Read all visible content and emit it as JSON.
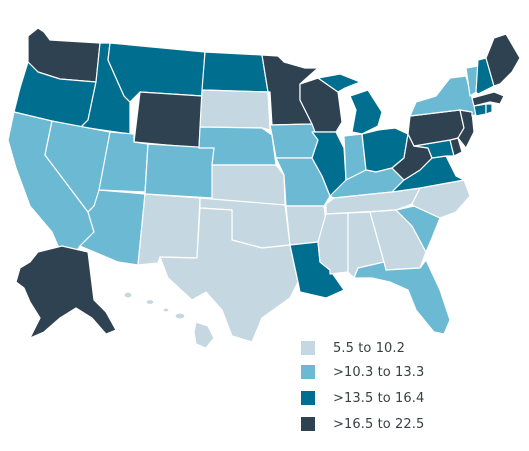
{
  "colors": {
    "bin1": "#c5d7e1",
    "bin2": "#6bb9d3",
    "bin3": "#006e8f",
    "bin4": "#2f4252"
  },
  "legend": {
    "items": [
      {
        "label": "5.5 to 10.2",
        "bin": "bin1"
      },
      {
        "label": ">10.3 to 13.3",
        "bin": "bin2"
      },
      {
        "label": ">13.5 to 16.4",
        "bin": "bin3"
      },
      {
        "label": ">16.5 to 22.5",
        "bin": "bin4"
      }
    ]
  },
  "states": {
    "WA": "bin4",
    "OR": "bin3",
    "ID": "bin3",
    "MT": "bin3",
    "WY": "bin4",
    "ND": "bin3",
    "SD": "bin1",
    "MN": "bin4",
    "WI": "bin4",
    "MI": "bin3",
    "CA": "bin2",
    "NV": "bin2",
    "UT": "bin2",
    "AZ": "bin2",
    "CO": "bin2",
    "NM": "bin1",
    "NE": "bin2",
    "KS": "bin1",
    "OK": "bin1",
    "TX": "bin1",
    "IA": "bin2",
    "MO": "bin2",
    "AR": "bin1",
    "LA": "bin3",
    "IL": "bin3",
    "IN": "bin2",
    "OH": "bin3",
    "KY": "bin2",
    "TN": "bin1",
    "MS": "bin1",
    "AL": "bin1",
    "GA": "bin1",
    "FL": "bin2",
    "SC": "bin2",
    "NC": "bin1",
    "VA": "bin3",
    "WV": "bin4",
    "PA": "bin4",
    "NY": "bin2",
    "MD": "bin3",
    "DE": "bin4",
    "NJ": "bin4",
    "CT": "bin3",
    "RI": "bin3",
    "MA": "bin4",
    "VT": "bin2",
    "NH": "bin3",
    "ME": "bin4",
    "AK": "bin4",
    "HI": "bin1"
  }
}
